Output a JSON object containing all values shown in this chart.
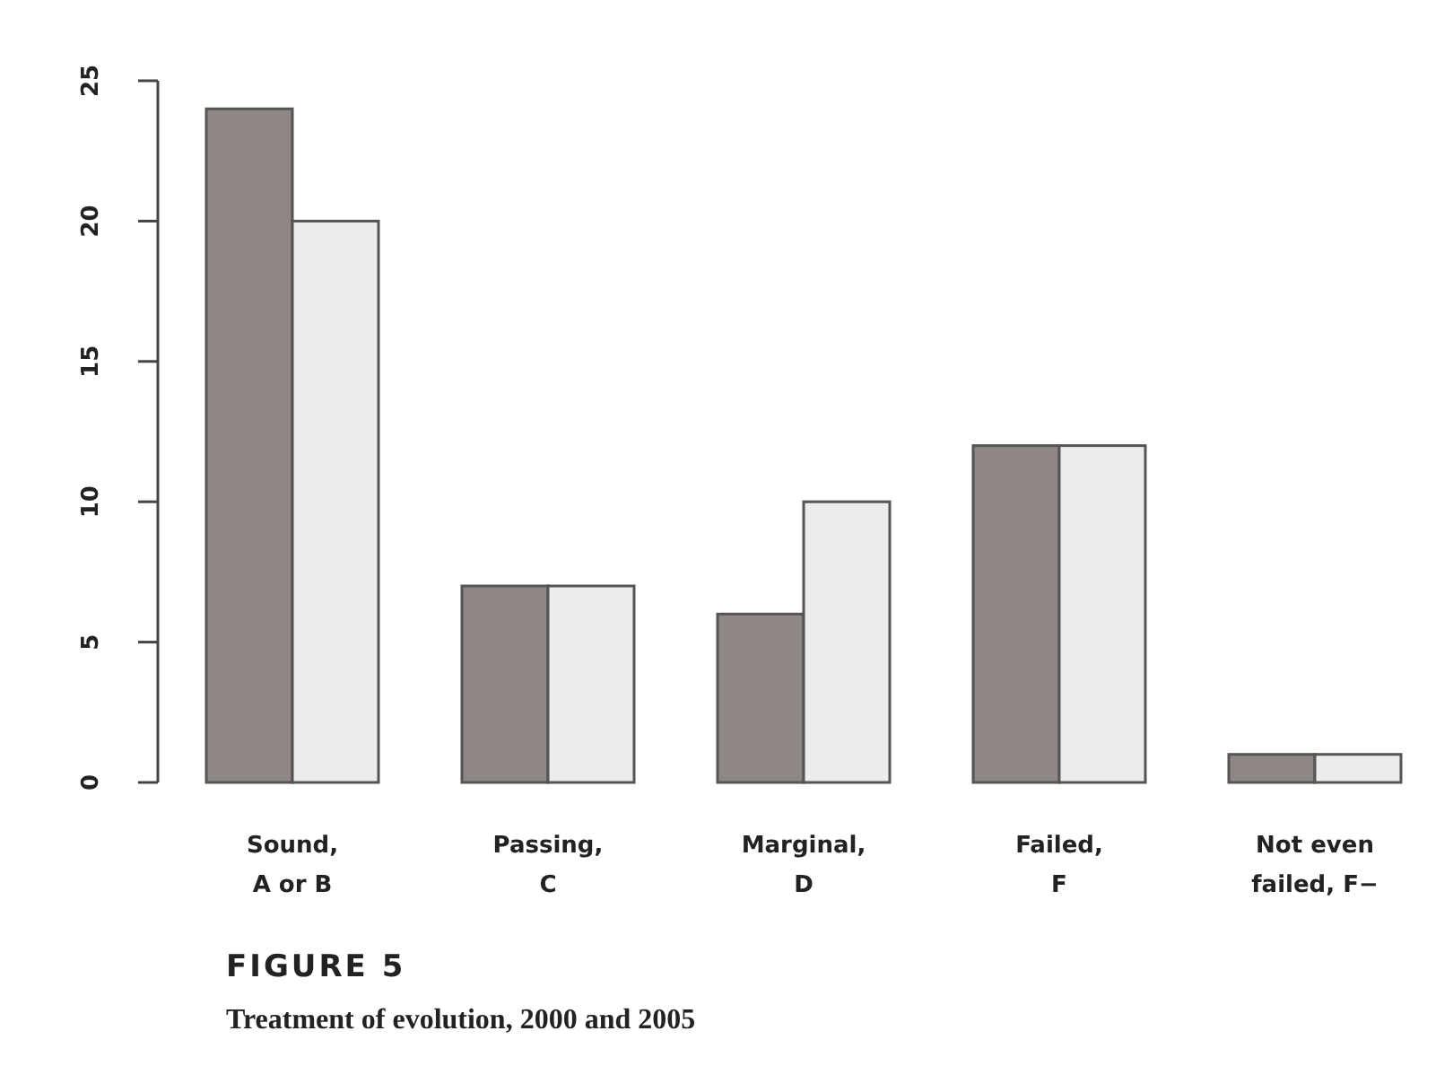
{
  "chart_data": {
    "type": "bar",
    "title": "FIGURE 5",
    "subtitle": "Treatment of evolution, 2000 and 2005",
    "categories": [
      "Sound,\nA or B",
      "Passing,\nC",
      "Marginal,\nD",
      "Failed,\nF",
      "Not even\nfailed, F−"
    ],
    "series": [
      {
        "color": "#8f8785",
        "values": [
          24,
          7,
          6,
          12,
          1
        ]
      },
      {
        "color": "#ececec",
        "values": [
          20,
          7,
          10,
          12,
          1
        ]
      }
    ],
    "ylim": [
      0,
      25
    ],
    "yticks": [
      0,
      5,
      10,
      15,
      20,
      25
    ]
  }
}
